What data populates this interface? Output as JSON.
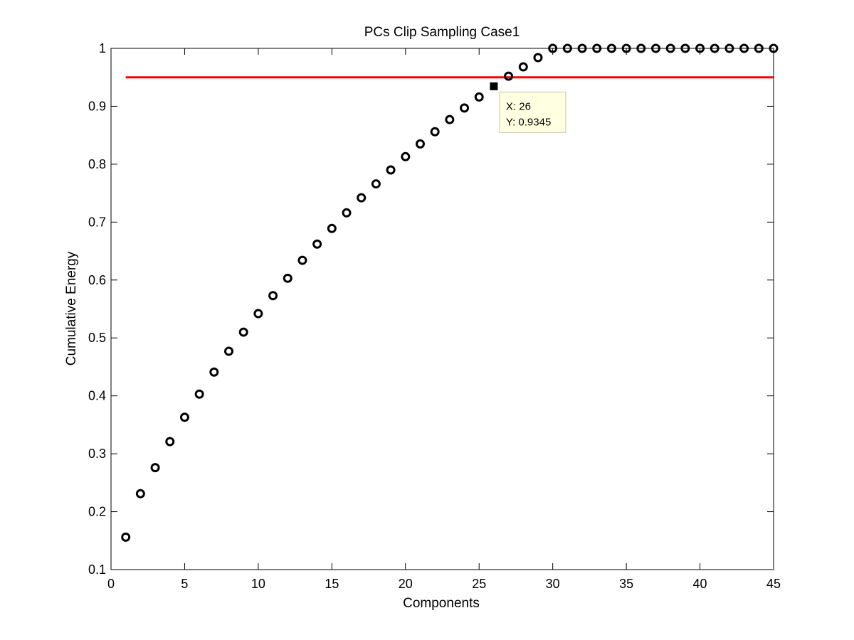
{
  "chart_data": {
    "type": "scatter",
    "title": "PCs Clip Sampling Case1",
    "xlabel": "Components",
    "ylabel": "Cumulative Energy",
    "xlim": [
      0,
      45
    ],
    "ylim": [
      0.1,
      1
    ],
    "xticks": [
      0,
      5,
      10,
      15,
      20,
      25,
      30,
      35,
      40,
      45
    ],
    "xtick_labels": [
      "0",
      "5",
      "10",
      "15",
      "20",
      "25",
      "30",
      "35",
      "40",
      "45"
    ],
    "yticks": [
      0.1,
      0.2,
      0.3,
      0.4,
      0.5,
      0.6,
      0.7,
      0.8,
      0.9,
      1.0
    ],
    "ytick_labels": [
      "0.1",
      "0.2",
      "0.3",
      "0.4",
      "0.5",
      "0.6",
      "0.7",
      "0.8",
      "0.9",
      "1"
    ],
    "grid": false,
    "series": [
      {
        "marker": "open-circle",
        "color": "#000000",
        "x": [
          1,
          2,
          3,
          4,
          5,
          6,
          7,
          8,
          9,
          10,
          11,
          12,
          13,
          14,
          15,
          16,
          17,
          18,
          19,
          20,
          21,
          22,
          23,
          24,
          25,
          27,
          28,
          29,
          30,
          31,
          32,
          33,
          34,
          35,
          36,
          37,
          38,
          39,
          40,
          41,
          42,
          43,
          44,
          45
        ],
        "y": [
          0.156,
          0.231,
          0.276,
          0.321,
          0.363,
          0.403,
          0.441,
          0.477,
          0.51,
          0.542,
          0.573,
          0.603,
          0.634,
          0.662,
          0.689,
          0.716,
          0.742,
          0.766,
          0.79,
          0.813,
          0.835,
          0.856,
          0.877,
          0.897,
          0.916,
          0.952,
          0.968,
          0.984,
          1,
          1,
          1,
          1,
          1,
          1,
          1,
          1,
          1,
          1,
          1,
          1,
          1,
          1,
          1,
          1
        ]
      }
    ],
    "threshold_line": {
      "y": 0.95,
      "x_start": 1,
      "x_end": 45,
      "color": "#ff0000"
    },
    "datatip": {
      "x": 26,
      "y": 0.9345,
      "x_text": "X: 26",
      "y_text": "Y: 0.9345",
      "marker_color": "#000000",
      "box_fill": "#ffffe1"
    }
  }
}
